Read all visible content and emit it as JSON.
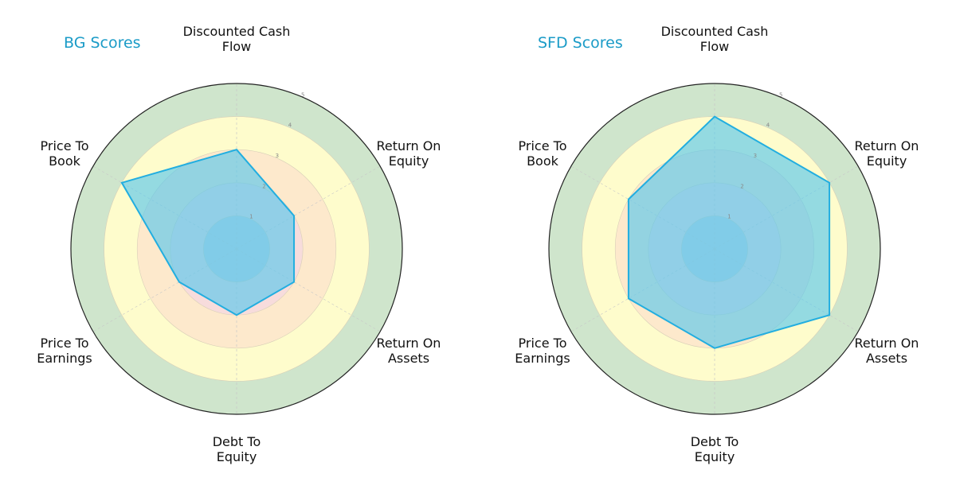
{
  "chart_data": [
    {
      "type": "radar",
      "title": "BG Scores",
      "axes": [
        "Discounted Cash Flow",
        "Return On Equity",
        "Return On Assets",
        "Debt To Equity",
        "Price To Earnings",
        "Price To Book"
      ],
      "axis_labels_lines": [
        [
          "Discounted Cash",
          "Flow"
        ],
        [
          "Return On",
          "Equity"
        ],
        [
          "Return On",
          "Assets"
        ],
        [
          "Debt To",
          "Equity"
        ],
        [
          "Price To",
          "Earnings"
        ],
        [
          "Price To",
          "Book"
        ]
      ],
      "values": [
        3,
        2,
        2,
        2,
        2,
        4
      ],
      "rlim": [
        0,
        5
      ],
      "rticks": [
        "1",
        "2",
        "3",
        "4",
        "5"
      ]
    },
    {
      "type": "radar",
      "title": "SFD Scores",
      "axes": [
        "Discounted Cash Flow",
        "Return On Equity",
        "Return On Assets",
        "Debt To Equity",
        "Price To Earnings",
        "Price To Book"
      ],
      "axis_labels_lines": [
        [
          "Discounted Cash",
          "Flow"
        ],
        [
          "Return On",
          "Equity"
        ],
        [
          "Return On",
          "Assets"
        ],
        [
          "Debt To",
          "Equity"
        ],
        [
          "Price To",
          "Earnings"
        ],
        [
          "Price To",
          "Book"
        ]
      ],
      "values": [
        4,
        4,
        4,
        3,
        3,
        3
      ],
      "rlim": [
        0,
        5
      ],
      "rticks": [
        "1",
        "2",
        "3",
        "4",
        "5"
      ]
    }
  ],
  "colors": {
    "bands": [
      "#c9d3e0",
      "#f7dcdc",
      "#fde9cc",
      "#fefccc",
      "#cfe5cc"
    ],
    "fill": "#5bc8ec",
    "stroke": "#22aee0",
    "title": "#1a9bc7"
  }
}
